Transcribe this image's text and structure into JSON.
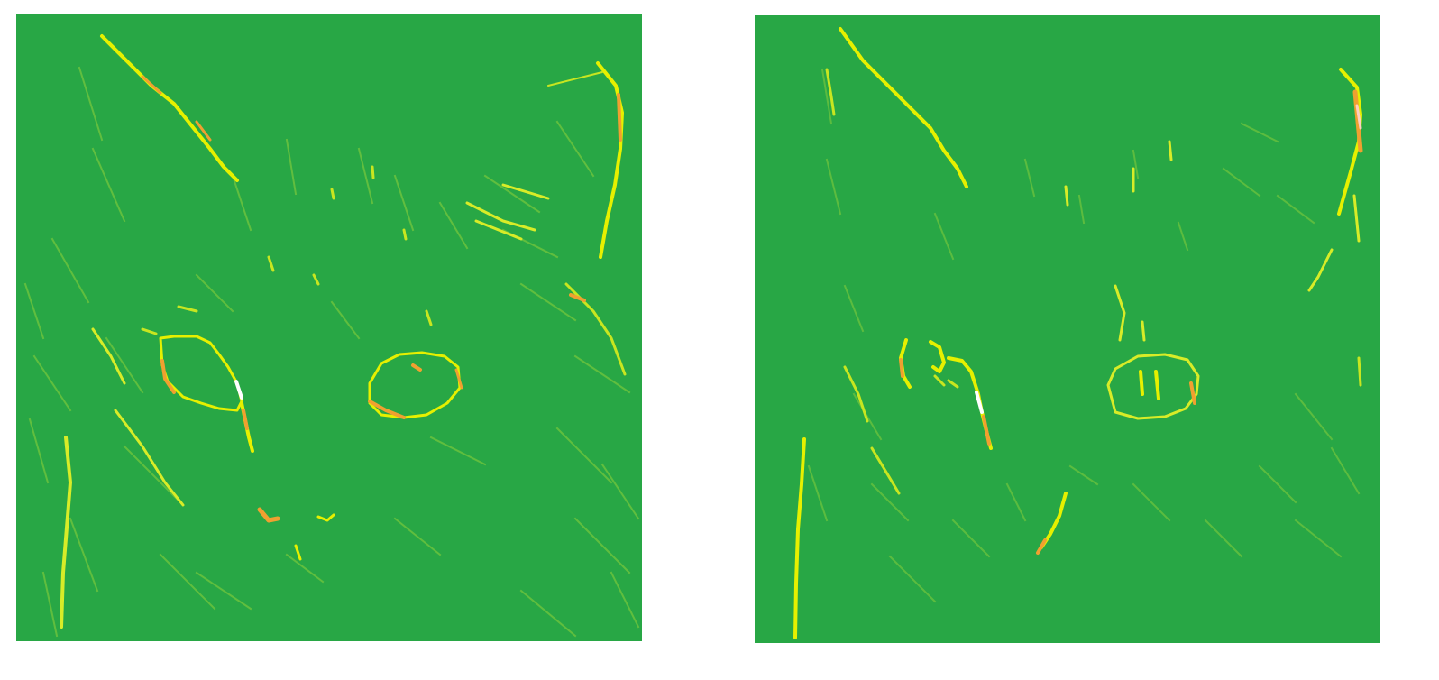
{
  "figure": {
    "panels": [
      {
        "id": "left",
        "subject": "cat-face-edge-map",
        "background_color": "#28a745",
        "edge_colors": [
          "#e6f000",
          "#f0a030",
          "#ffffff"
        ]
      },
      {
        "id": "right",
        "subject": "cat-face-edge-map",
        "background_color": "#28a745",
        "edge_colors": [
          "#e6f000",
          "#f0a030",
          "#ffffff"
        ]
      }
    ]
  }
}
